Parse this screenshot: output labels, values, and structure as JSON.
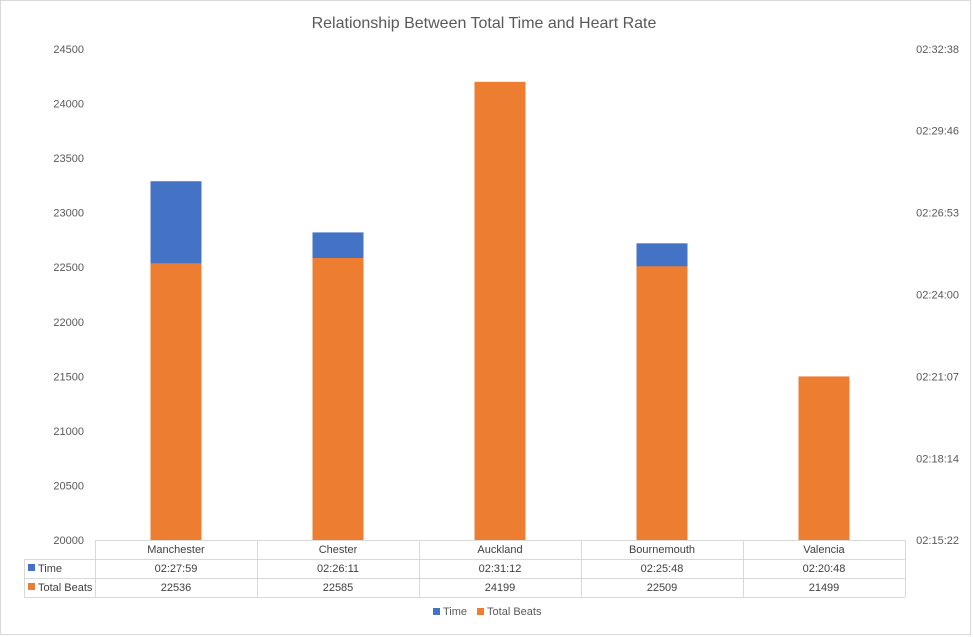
{
  "chart_data": {
    "type": "bar",
    "title": "Relationship Between Total Time and Heart Rate",
    "categories": [
      "Manchester",
      "Chester",
      "Auckland",
      "Bournemouth",
      "Valencia"
    ],
    "series": [
      {
        "name": "Time",
        "axis": "right",
        "color": "#4472c4",
        "values": [
          "02:27:59",
          "02:26:11",
          "02:31:12",
          "02:25:48",
          "02:20:48"
        ]
      },
      {
        "name": "Total Beats",
        "axis": "left",
        "color": "#ed7d31",
        "values": [
          22536,
          22585,
          24199,
          22509,
          21499
        ]
      }
    ],
    "ylim_left": [
      20000,
      24500
    ],
    "yticks_left": [
      "20000",
      "20500",
      "21000",
      "21500",
      "22000",
      "22500",
      "23000",
      "23500",
      "24000",
      "24500"
    ],
    "ylim_right": [
      "02:15:22",
      "02:32:38"
    ],
    "yticks_right": [
      "02:15:22",
      "02:18:14",
      "02:21:07",
      "02:24:00",
      "02:26:53",
      "02:29:46",
      "02:32:38"
    ],
    "data_table": true,
    "legend": "bottom",
    "grid": false
  }
}
